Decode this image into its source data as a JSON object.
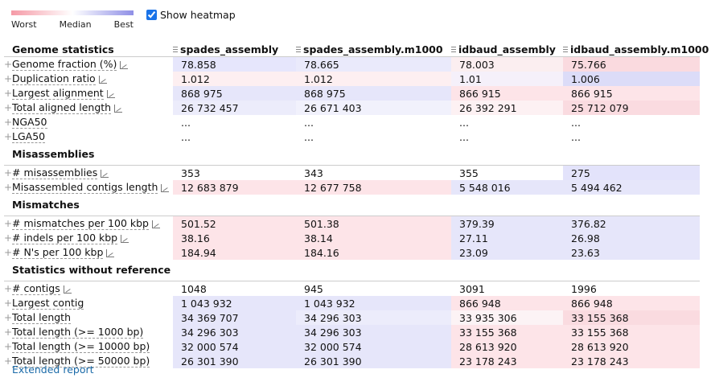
{
  "legend": {
    "worst": "Worst",
    "median": "Median",
    "best": "Best"
  },
  "show_heatmap": "Show heatmap",
  "header": {
    "first": "Genome statistics",
    "cols": [
      "spades_assembly",
      "spades_assembly.m1000",
      "idbaud_assembly",
      "idbaud_assembly.m1000"
    ]
  },
  "sections": [
    {
      "title": "Genome statistics",
      "rows": [
        {
          "name": "Genome fraction (%)",
          "icon": true,
          "values": [
            "78.858",
            "78.665",
            "78.003",
            "75.766"
          ],
          "colors": [
            "#e6e6fc",
            "#eaeafb",
            "#fbeef0",
            "#fadadf"
          ]
        },
        {
          "name": "Duplication ratio",
          "icon": true,
          "values": [
            "1.012",
            "1.012",
            "1.01",
            "1.006"
          ],
          "colors": [
            "#fdeff1",
            "#fdeff1",
            "#f5f0fa",
            "#dcdcf8"
          ]
        },
        {
          "name": "Largest alignment",
          "icon": true,
          "values": [
            "868 975",
            "868 975",
            "866 915",
            "866 915"
          ],
          "colors": [
            "#e6e6fa",
            "#e6e6fa",
            "#fde4e8",
            "#fde4e8"
          ]
        },
        {
          "name": "Total aligned length",
          "icon": true,
          "values": [
            "26 732 457",
            "26 671 403",
            "26 392 291",
            "25 712 079"
          ],
          "colors": [
            "#ececfb",
            "#f1f1fc",
            "#fdf1f3",
            "#fadbe0"
          ]
        },
        {
          "name": "NGA50",
          "icon": false,
          "values": [
            "...",
            "...",
            "...",
            "..."
          ],
          "colors": [
            "#ffffff",
            "#ffffff",
            "#ffffff",
            "#ffffff"
          ]
        },
        {
          "name": "LGA50",
          "icon": false,
          "values": [
            "...",
            "...",
            "...",
            "..."
          ],
          "colors": [
            "#ffffff",
            "#ffffff",
            "#ffffff",
            "#ffffff"
          ]
        }
      ]
    },
    {
      "title": "Misassemblies",
      "rows": [
        {
          "name": "# misassemblies",
          "icon": true,
          "values": [
            "353",
            "343",
            "355",
            "275"
          ],
          "colors": [
            "#ffffff",
            "#ffffff",
            "#ffffff",
            "#e3e3fb"
          ]
        },
        {
          "name": "Misassembled contigs length",
          "icon": true,
          "values": [
            "12 683 879",
            "12 677 758",
            "5 548 016",
            "5 494 462"
          ],
          "colors": [
            "#fde4e8",
            "#fde4e8",
            "#e6e6fa",
            "#e6e6fa"
          ]
        }
      ]
    },
    {
      "title": "Mismatches",
      "rows": [
        {
          "name": "# mismatches per 100 kbp",
          "icon": true,
          "values": [
            "501.52",
            "501.38",
            "379.39",
            "376.82"
          ],
          "colors": [
            "#fde4e8",
            "#fde4e8",
            "#e6e6fa",
            "#e6e6fa"
          ]
        },
        {
          "name": "# indels per 100 kbp",
          "icon": true,
          "values": [
            "38.16",
            "38.14",
            "27.11",
            "26.98"
          ],
          "colors": [
            "#fde4e8",
            "#fde4e8",
            "#e6e6fa",
            "#e6e6fa"
          ]
        },
        {
          "name": "# N's per 100 kbp",
          "icon": true,
          "values": [
            "184.94",
            "184.16",
            "23.09",
            "23.63"
          ],
          "colors": [
            "#fde4e8",
            "#fde4e8",
            "#e6e6fa",
            "#e6e6fa"
          ]
        }
      ]
    },
    {
      "title": "Statistics without reference",
      "rows": [
        {
          "name": "# contigs",
          "icon": true,
          "values": [
            "1048",
            "945",
            "3091",
            "1996"
          ],
          "colors": [
            "#ffffff",
            "#ffffff",
            "#ffffff",
            "#ffffff"
          ]
        },
        {
          "name": "Largest contig",
          "icon": false,
          "values": [
            "1 043 932",
            "1 043 932",
            "866 948",
            "866 948"
          ],
          "colors": [
            "#e6e6fa",
            "#e6e6fa",
            "#fde4e8",
            "#fde4e8"
          ]
        },
        {
          "name": "Total length",
          "icon": false,
          "values": [
            "34 369 707",
            "34 296 303",
            "33 935 306",
            "33 155 368"
          ],
          "colors": [
            "#e6e6fa",
            "#ececfb",
            "#fcf3f5",
            "#fadbe0"
          ]
        },
        {
          "name": "Total length (>= 1000 bp)",
          "icon": false,
          "values": [
            "34 296 303",
            "34 296 303",
            "33 155 368",
            "33 155 368"
          ],
          "colors": [
            "#e6e6fa",
            "#e6e6fa",
            "#fde4e8",
            "#fde4e8"
          ]
        },
        {
          "name": "Total length (>= 10000 bp)",
          "icon": false,
          "values": [
            "32 000 574",
            "32 000 574",
            "28 613 920",
            "28 613 920"
          ],
          "colors": [
            "#e6e6fa",
            "#e6e6fa",
            "#fde4e8",
            "#fde4e8"
          ]
        },
        {
          "name": "Total length (>= 50000 bp)",
          "icon": false,
          "values": [
            "26 301 390",
            "26 301 390",
            "23 178 243",
            "23 178 243"
          ],
          "colors": [
            "#e6e6fa",
            "#e6e6fa",
            "#fde4e8",
            "#fde4e8"
          ]
        }
      ]
    }
  ],
  "extended_report": "Extended report"
}
